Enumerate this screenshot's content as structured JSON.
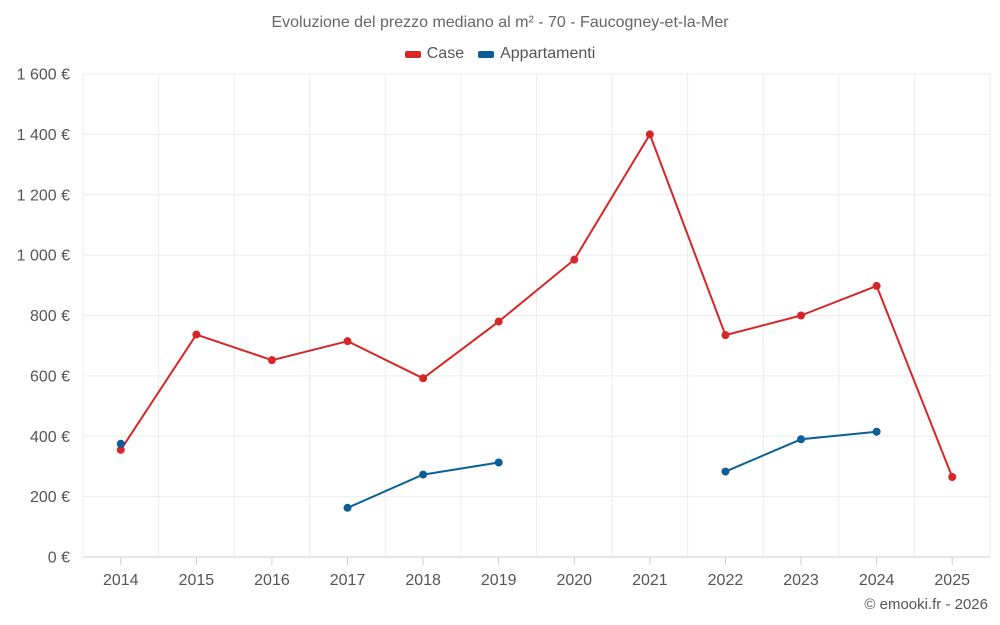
{
  "chart_data": {
    "type": "line",
    "title": "Evoluzione del prezzo mediano al m² - 70 - Faucogney-et-la-Mer",
    "x": [
      "2014",
      "2015",
      "2016",
      "2017",
      "2018",
      "2019",
      "2020",
      "2021",
      "2022",
      "2023",
      "2024",
      "2025"
    ],
    "y_ticks": [
      "0 €",
      "200 €",
      "400 €",
      "600 €",
      "800 €",
      "1 000 €",
      "1 200 €",
      "1 400 €",
      "1 600 €"
    ],
    "ylim": [
      0,
      1600
    ],
    "xlabel": "",
    "ylabel": "",
    "grid": true,
    "legend_position": "top-center",
    "series": [
      {
        "name": "Case",
        "color": "#d62728",
        "values": [
          355,
          737,
          652,
          715,
          592,
          780,
          985,
          1400,
          735,
          800,
          898,
          265
        ]
      },
      {
        "name": "Appartamenti",
        "color": "#0a5f96",
        "values": [
          375,
          null,
          null,
          163,
          273,
          313,
          null,
          null,
          283,
          390,
          415,
          null
        ]
      }
    ]
  },
  "legend": {
    "case_label": "Case",
    "appartamenti_label": "Appartamenti",
    "case_color": "#d62728",
    "appartamenti_color": "#0a5f96"
  },
  "credit": "© emooki.fr - 2026"
}
